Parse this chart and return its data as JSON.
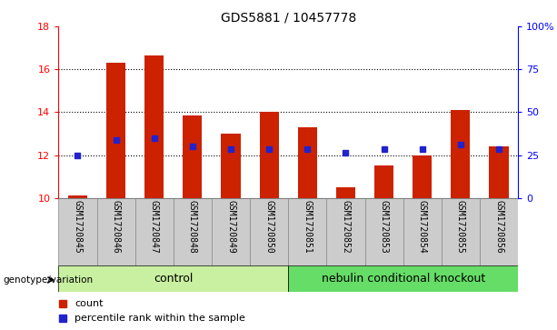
{
  "title": "GDS5881 / 10457778",
  "samples": [
    "GSM1720845",
    "GSM1720846",
    "GSM1720847",
    "GSM1720848",
    "GSM1720849",
    "GSM1720850",
    "GSM1720851",
    "GSM1720852",
    "GSM1720853",
    "GSM1720854",
    "GSM1720855",
    "GSM1720856"
  ],
  "bar_heights": [
    10.1,
    16.3,
    16.65,
    13.85,
    13.0,
    14.0,
    13.3,
    10.5,
    11.5,
    12.0,
    14.1,
    12.4
  ],
  "blue_dots": [
    12.0,
    12.7,
    12.8,
    12.42,
    12.28,
    12.28,
    12.28,
    12.1,
    12.28,
    12.28,
    12.5,
    12.28
  ],
  "bar_bottom": 10.0,
  "ylim_left": [
    10,
    18
  ],
  "ylim_right": [
    0,
    100
  ],
  "yticks_left": [
    10,
    12,
    14,
    16,
    18
  ],
  "yticks_right": [
    0,
    25,
    50,
    75,
    100
  ],
  "ytick_labels_right": [
    "0",
    "25",
    "50",
    "75",
    "100%"
  ],
  "bar_color": "#cc2200",
  "blue_color": "#2222cc",
  "control_label": "control",
  "knockout_label": "nebulin conditional knockout",
  "control_bg": "#c8f0a0",
  "knockout_bg": "#66dd66",
  "genotype_label": "genotype/variation",
  "legend_count": "count",
  "legend_percentile": "percentile rank within the sample",
  "n_control": 6,
  "n_knockout": 6,
  "bar_width": 0.5,
  "cell_bg": "#cccccc",
  "cell_border": "#888888"
}
